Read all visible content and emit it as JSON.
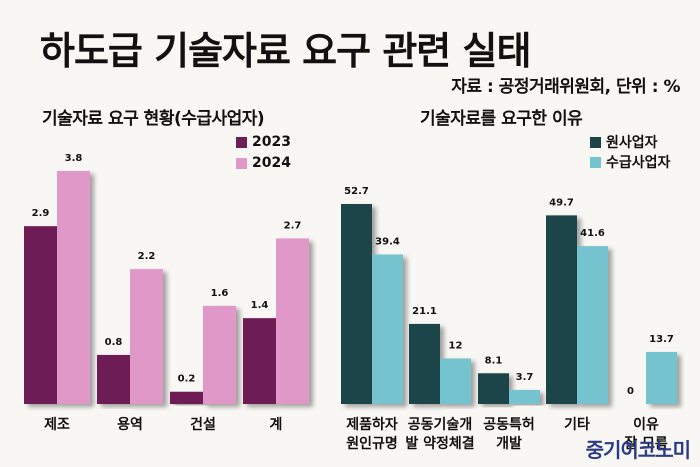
{
  "title": "하도급 기술자료 요구 관련 실태",
  "source": "자료 : 공정거래위원회, 단위 : %",
  "watermark": "중기이코노미",
  "chart_data": [
    {
      "type": "bar",
      "title": "기술자료 요구 현황(수급사업자)",
      "categories": [
        "제조",
        "용역",
        "건설",
        "계"
      ],
      "series": [
        {
          "name": "2023",
          "color": "#6e1f55",
          "values": [
            2.9,
            0.8,
            0.2,
            1.4
          ]
        },
        {
          "name": "2024",
          "color": "#df98c8",
          "values": [
            3.8,
            2.2,
            1.6,
            2.7
          ]
        }
      ],
      "xlabel": "",
      "ylabel": "",
      "ylim": [
        0,
        3.8
      ],
      "grid": false,
      "legend": "top-right"
    },
    {
      "type": "bar",
      "title": "기술자료를 요구한 이유",
      "categories": [
        [
          "제품하자",
          "원인규명"
        ],
        [
          "공동기술개",
          "발 약정체결"
        ],
        [
          "공동특허",
          "개발"
        ],
        [
          "기타"
        ],
        [
          "이유",
          "잘 모름"
        ]
      ],
      "series": [
        {
          "name": "원사업자",
          "color": "#1c4448",
          "values": [
            52.7,
            21.1,
            8.1,
            49.7,
            0
          ]
        },
        {
          "name": "수급사업자",
          "color": "#74c3cf",
          "values": [
            39.4,
            12,
            3.7,
            41.6,
            13.7
          ]
        }
      ],
      "xlabel": "",
      "ylabel": "",
      "ylim": [
        0,
        52.7
      ],
      "grid": false,
      "legend": "top-right"
    }
  ]
}
